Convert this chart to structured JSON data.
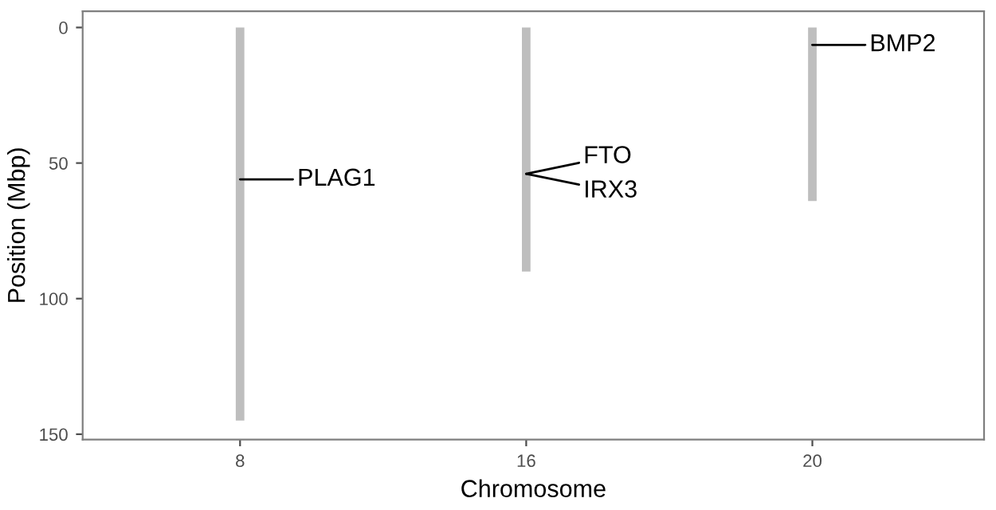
{
  "chart_data": {
    "type": "bar",
    "xlabel": "Chromosome",
    "ylabel": "Position (Mbp)",
    "categories": [
      "8",
      "16",
      "20"
    ],
    "base": [
      0,
      0,
      0
    ],
    "values": [
      145,
      90,
      64
    ],
    "color": "#bebebe",
    "ylim": [
      152,
      -6
    ],
    "yticks": [
      0,
      50,
      100,
      150
    ],
    "grid": false,
    "annotations": [
      {
        "text": "PLAG1",
        "x": "8",
        "y": 56
      },
      {
        "text": "FTO",
        "x": "16",
        "y": 54
      },
      {
        "text": "IRX3",
        "x": "16",
        "y": 54
      },
      {
        "text": "BMP2",
        "x": "20",
        "y": 6.4
      }
    ]
  }
}
